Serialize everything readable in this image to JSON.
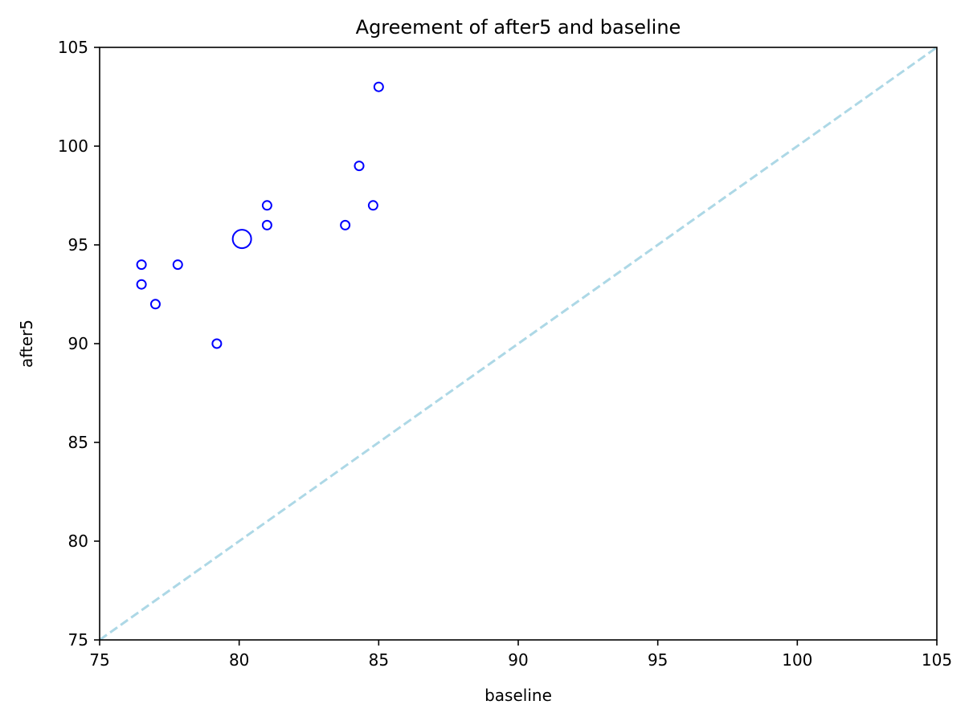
{
  "chart_data": {
    "type": "scatter",
    "title": "Agreement of after5 and baseline",
    "xlabel": "baseline",
    "ylabel": "after5",
    "xlim": [
      75,
      105
    ],
    "ylim": [
      75,
      105
    ],
    "xticks": [
      75,
      80,
      85,
      90,
      95,
      100,
      105
    ],
    "yticks": [
      75,
      80,
      85,
      90,
      95,
      100,
      105
    ],
    "grid": false,
    "marker_color": "#0000ff",
    "reference_line": {
      "style": "dashed",
      "color": "#add8e6",
      "x": [
        75,
        105
      ],
      "y": [
        75,
        105
      ]
    },
    "series": [
      {
        "points": [
          {
            "x": 76.5,
            "y": 94
          },
          {
            "x": 76.5,
            "y": 93
          },
          {
            "x": 77.0,
            "y": 92
          },
          {
            "x": 77.8,
            "y": 94
          },
          {
            "x": 79.2,
            "y": 90
          },
          {
            "x": 81.0,
            "y": 97
          },
          {
            "x": 81.0,
            "y": 96
          },
          {
            "x": 83.8,
            "y": 96
          },
          {
            "x": 84.3,
            "y": 99
          },
          {
            "x": 84.8,
            "y": 97
          },
          {
            "x": 85.0,
            "y": 103
          }
        ]
      }
    ],
    "highlight_point": {
      "x": 80.1,
      "y": 95.3
    }
  }
}
